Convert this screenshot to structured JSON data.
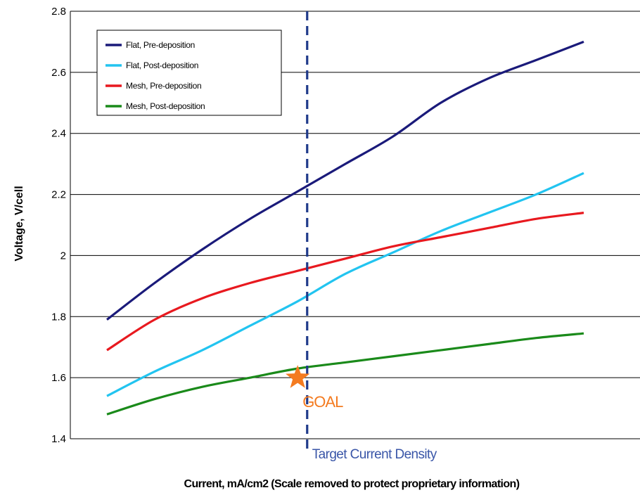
{
  "chart_data": {
    "type": "line",
    "title": "",
    "xlabel": "Current, mA/cm2  (Scale removed to protect proprietary information)",
    "ylabel": "Voltage,  V/cell",
    "xlim": [
      0,
      10
    ],
    "ylim": [
      1.4,
      2.8
    ],
    "yticks": [
      "1.4",
      "1.6",
      "1.8",
      "2",
      "2.2",
      "2.4",
      "2.6",
      "2.8"
    ],
    "grid": true,
    "legend_position": "top-left",
    "x": [
      0,
      1,
      2,
      3,
      4,
      5,
      6,
      7,
      8,
      9,
      10
    ],
    "series": [
      {
        "name": "Flat, Pre-deposition",
        "color": "#1a1a7a",
        "values": [
          1.79,
          1.91,
          2.02,
          2.12,
          2.21,
          2.3,
          2.39,
          2.5,
          2.58,
          2.64,
          2.7
        ]
      },
      {
        "name": "Flat, Post-deposition",
        "color": "#22c4f0",
        "values": [
          1.54,
          1.62,
          1.69,
          1.77,
          1.85,
          1.94,
          2.01,
          2.08,
          2.14,
          2.2,
          2.27
        ]
      },
      {
        "name": "Mesh, Pre-deposition",
        "color": "#e8191f",
        "values": [
          1.69,
          1.79,
          1.86,
          1.91,
          1.95,
          1.99,
          2.03,
          2.06,
          2.09,
          2.12,
          2.14
        ]
      },
      {
        "name": "Mesh, Post-deposition",
        "color": "#1a8a1a",
        "values": [
          1.48,
          1.53,
          1.57,
          1.6,
          1.63,
          1.65,
          1.67,
          1.69,
          1.71,
          1.73,
          1.745
        ]
      }
    ],
    "annotations": {
      "target_line": {
        "x": 4.2,
        "label": "Target Current Density",
        "color": "#1f3a8a"
      },
      "goal": {
        "x": 4.0,
        "y": 1.6,
        "label": "GOAL",
        "color": "#f47b20"
      }
    }
  }
}
